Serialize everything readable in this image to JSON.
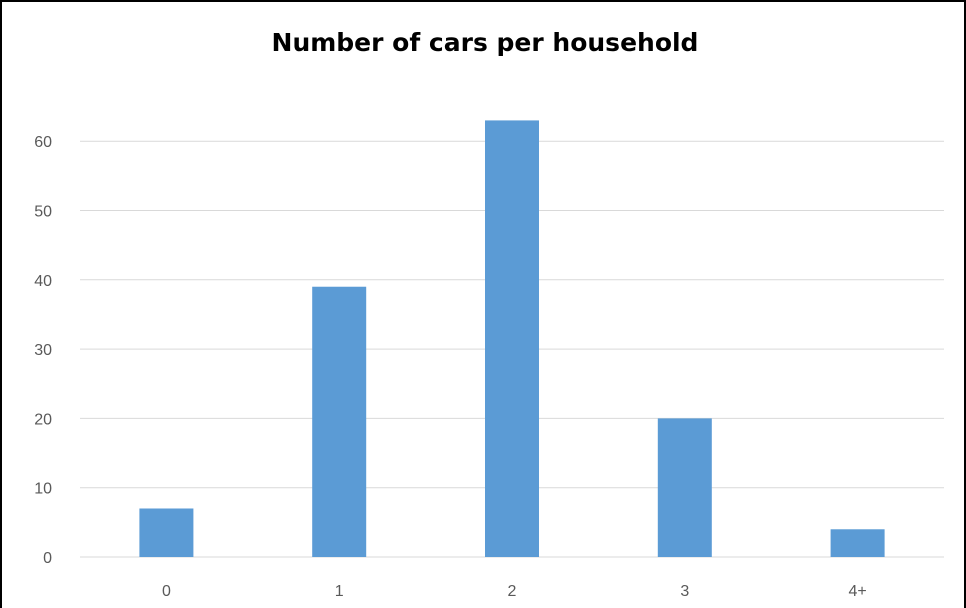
{
  "chart_data": {
    "type": "bar",
    "title": "Number of cars per household",
    "xlabel": "",
    "ylabel": "",
    "categories": [
      "0",
      "1",
      "2",
      "3",
      "4+"
    ],
    "values": [
      7,
      39,
      63,
      20,
      4
    ],
    "ylim": [
      0,
      60
    ],
    "yticks": [
      0,
      10,
      20,
      30,
      40,
      50,
      60
    ],
    "grid": true,
    "legend": "none",
    "bar_color": "#5B9BD5",
    "grid_color": "#D9D9D9"
  }
}
